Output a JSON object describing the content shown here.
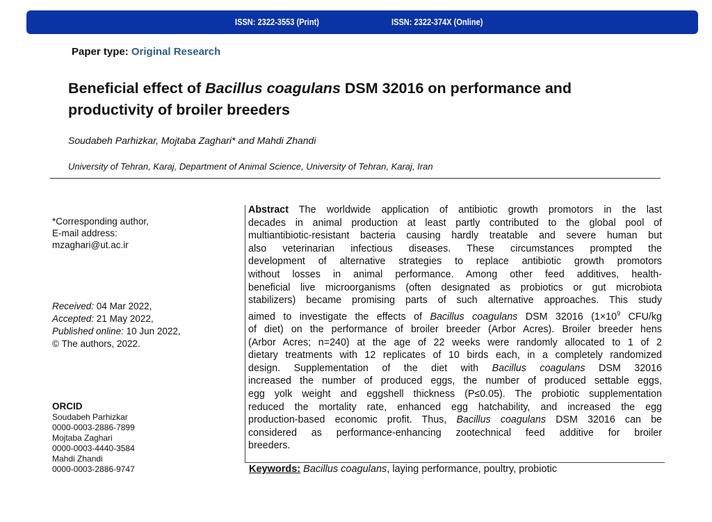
{
  "banner": {
    "issn_print": "ISSN: 2322-3553 (Print)",
    "issn_online": "ISSN: 2322-374X (Online)",
    "color": "#0a34a6"
  },
  "paper_type": {
    "label": "Paper type:",
    "value": "Original Research"
  },
  "title": {
    "pre": "Beneficial effect of ",
    "species": "Bacillus coagulans",
    "post": " DSM 32016 on performance and",
    "line2": "productivity of broiler breeders"
  },
  "authors": "Soudabeh Parhizkar, Mojtaba Zaghari* and Mahdi Zhandi",
  "affiliation": "University of Tehran, Karaj, Department of Animal Science, University of Tehran, Karaj, Iran",
  "corresponding": {
    "line1": "*Corresponding author,",
    "line2": "E-mail address:",
    "email": "mzaghari@ut.ac.ir"
  },
  "dates": {
    "received_label": "Received:",
    "received": " 04 Mar 2022,",
    "accepted_label": "Accepted:",
    "accepted": " 21 May 2022,",
    "published_label": "Published online:",
    "published": " 10 Jun 2022,",
    "copyright": "© The authors, 2022."
  },
  "orcid": {
    "heading": "ORCID",
    "entries": [
      {
        "name": "Soudabeh Parhizkar",
        "id": "0000-0003-2886-7899"
      },
      {
        "name": "Mojtaba Zaghari",
        "id": "0000-0003-4440-3584"
      },
      {
        "name": "Mahdi Zhandi",
        "id": "0000-0003-2886-9747"
      }
    ]
  },
  "abstract_lines": [
    [
      {
        "t": "Abstract",
        "s": "b"
      },
      {
        "t": " The worldwide application of antibiotic growth promotors in the last"
      }
    ],
    [
      {
        "t": "decades in animal production at least partly contributed to the global pool of"
      }
    ],
    [
      {
        "t": "multiantibiotic-resistant bacteria causing hardly treatable and severe human but"
      }
    ],
    [
      {
        "t": "also veterinarian infectious diseases. These circumstances prompted the"
      }
    ],
    [
      {
        "t": "development of alternative strategies to replace antibiotic growth promotors"
      }
    ],
    [
      {
        "t": "without losses in animal performance. Among other feed additives, health-"
      }
    ],
    [
      {
        "t": "beneficial live microorganisms (often designated as probiotics or gut microbiota"
      }
    ],
    [
      {
        "t": "stabilizers) became promising parts of such alternative approaches. This study"
      }
    ],
    [
      {
        "t": "aimed to investigate the effects of "
      },
      {
        "t": "Bacillus coagulans",
        "s": "i"
      },
      {
        "t": " DSM 32016 (1×10"
      },
      {
        "t": "9",
        "s": "sup"
      },
      {
        "t": " CFU/kg"
      }
    ],
    [
      {
        "t": "of diet) on the performance of broiler breeder (Arbor Acres). Broiler breeder hens"
      }
    ],
    [
      {
        "t": "(Arbor Acres; n=240) at the age of 22 weeks were randomly allocated to 1 of 2"
      }
    ],
    [
      {
        "t": "dietary treatments with 12 replicates of 10 birds each, in a completely randomized"
      }
    ],
    [
      {
        "t": "design. Supplementation of the diet with "
      },
      {
        "t": "Bacillus coagulans",
        "s": "i"
      },
      {
        "t": " DSM 32016"
      }
    ],
    [
      {
        "t": "increased the number of produced eggs, the number of produced settable eggs,"
      }
    ],
    [
      {
        "t": "egg yolk weight and eggshell thickness (P≤0.05). The probiotic supplementation"
      }
    ],
    [
      {
        "t": "reduced the mortality rate, enhanced egg hatchability, and increased the egg"
      }
    ],
    [
      {
        "t": "production-based economic profit. Thus, "
      },
      {
        "t": "Bacillus coagulans",
        "s": "i"
      },
      {
        "t": " DSM 32016 can be"
      }
    ],
    [
      {
        "t": "considered as performance-enhancing zootechnical feed additive for broiler"
      }
    ],
    [
      {
        "t": "breeders."
      }
    ]
  ],
  "keywords": {
    "label": "Keywords:",
    "species": "Bacillus coagulans",
    "rest": ", laying performance, poultry, probiotic"
  }
}
